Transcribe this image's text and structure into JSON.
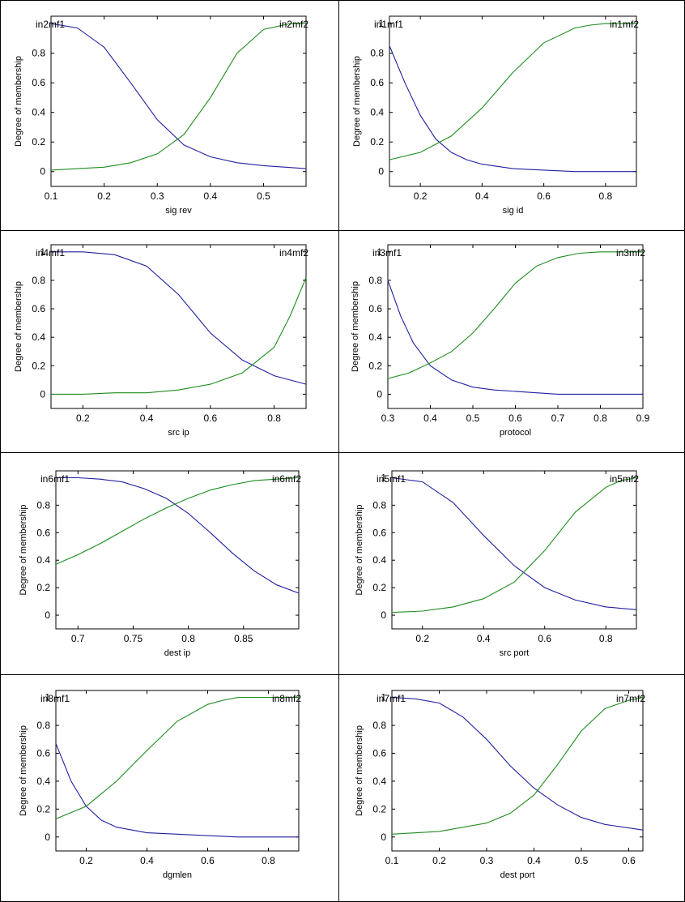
{
  "colors": {
    "mf1": "#1f1fa0",
    "mf2": "#1e8c1e",
    "border": "#000000"
  },
  "chart_data": [
    {
      "type": "line",
      "xlabel": "sig rev",
      "ylabel": "Degree of membership",
      "xlim": [
        0.1,
        0.58
      ],
      "ylim": [
        -0.1,
        1.05
      ],
      "xticks": [
        "0.1",
        "0.2",
        "0.3",
        "0.4",
        "0.5"
      ],
      "xtick_values": [
        0.1,
        0.2,
        0.3,
        0.4,
        0.5
      ],
      "yticks": [
        "0",
        "0.2",
        "0.4",
        "0.6",
        "0.8"
      ],
      "ytick_values": [
        0,
        0.2,
        0.4,
        0.6,
        0.8
      ],
      "series": [
        {
          "name": "in2mf1",
          "x": [
            0.1,
            0.15,
            0.2,
            0.25,
            0.3,
            0.35,
            0.4,
            0.45,
            0.5,
            0.58
          ],
          "y": [
            1.0,
            0.97,
            0.84,
            0.6,
            0.35,
            0.18,
            0.1,
            0.06,
            0.04,
            0.02
          ]
        },
        {
          "name": "in2mf2",
          "x": [
            0.1,
            0.15,
            0.2,
            0.25,
            0.3,
            0.35,
            0.4,
            0.45,
            0.5,
            0.55,
            0.58
          ],
          "y": [
            0.01,
            0.02,
            0.03,
            0.06,
            0.12,
            0.25,
            0.5,
            0.8,
            0.96,
            1.0,
            1.0
          ]
        }
      ]
    },
    {
      "type": "line",
      "xlabel": "sig id",
      "ylabel": "Degree of membership",
      "xlim": [
        0.1,
        0.9
      ],
      "ylim": [
        -0.1,
        1.05
      ],
      "xticks": [
        "0.2",
        "0.4",
        "0.6",
        "0.8"
      ],
      "xtick_values": [
        0.2,
        0.4,
        0.6,
        0.8
      ],
      "yticks": [
        "0",
        "0.2",
        "0.4",
        "0.6",
        "0.8",
        "1"
      ],
      "ytick_values": [
        0,
        0.2,
        0.4,
        0.6,
        0.8,
        1
      ],
      "series": [
        {
          "name": "in1mf1",
          "x": [
            0.1,
            0.15,
            0.2,
            0.25,
            0.3,
            0.35,
            0.4,
            0.5,
            0.6,
            0.7,
            0.8,
            0.9
          ],
          "y": [
            0.85,
            0.6,
            0.38,
            0.22,
            0.13,
            0.08,
            0.05,
            0.02,
            0.01,
            0.0,
            0.0,
            0.0
          ]
        },
        {
          "name": "in1mf2",
          "x": [
            0.1,
            0.2,
            0.3,
            0.4,
            0.5,
            0.6,
            0.7,
            0.75,
            0.8,
            0.9
          ],
          "y": [
            0.08,
            0.13,
            0.24,
            0.43,
            0.67,
            0.87,
            0.97,
            0.99,
            1.0,
            1.0
          ]
        }
      ]
    },
    {
      "type": "line",
      "xlabel": "src ip",
      "ylabel": "Degree of membership",
      "xlim": [
        0.1,
        0.9
      ],
      "ylim": [
        -0.1,
        1.05
      ],
      "xticks": [
        "0.2",
        "0.4",
        "0.6",
        "0.8"
      ],
      "xtick_values": [
        0.2,
        0.4,
        0.6,
        0.8
      ],
      "yticks": [
        "0",
        "0.2",
        "0.4",
        "0.6",
        "0.8",
        "1"
      ],
      "ytick_values": [
        0,
        0.2,
        0.4,
        0.6,
        0.8,
        1
      ],
      "series": [
        {
          "name": "in4mf1",
          "x": [
            0.1,
            0.2,
            0.3,
            0.4,
            0.5,
            0.6,
            0.7,
            0.8,
            0.9
          ],
          "y": [
            1.0,
            1.0,
            0.98,
            0.9,
            0.7,
            0.43,
            0.24,
            0.13,
            0.07
          ]
        },
        {
          "name": "in4mf2",
          "x": [
            0.1,
            0.2,
            0.3,
            0.4,
            0.5,
            0.6,
            0.7,
            0.8,
            0.85,
            0.9
          ],
          "y": [
            0.0,
            0.0,
            0.01,
            0.01,
            0.03,
            0.07,
            0.15,
            0.33,
            0.55,
            0.82
          ]
        }
      ]
    },
    {
      "type": "line",
      "xlabel": "protocol",
      "ylabel": "Degree of membership",
      "xlim": [
        0.3,
        0.9
      ],
      "ylim": [
        -0.1,
        1.05
      ],
      "xticks": [
        "0.3",
        "0.4",
        "0.5",
        "0.6",
        "0.7",
        "0.8",
        "0.9"
      ],
      "xtick_values": [
        0.3,
        0.4,
        0.5,
        0.6,
        0.7,
        0.8,
        0.9
      ],
      "yticks": [
        "0",
        "0.2",
        "0.4",
        "0.6",
        "0.8",
        "1"
      ],
      "ytick_values": [
        0,
        0.2,
        0.4,
        0.6,
        0.8,
        1
      ],
      "series": [
        {
          "name": "in3mf1",
          "x": [
            0.3,
            0.33,
            0.36,
            0.4,
            0.45,
            0.5,
            0.55,
            0.6,
            0.7,
            0.8,
            0.9
          ],
          "y": [
            0.8,
            0.55,
            0.36,
            0.2,
            0.1,
            0.05,
            0.03,
            0.02,
            0.0,
            0.0,
            0.0
          ]
        },
        {
          "name": "in3mf2",
          "x": [
            0.3,
            0.35,
            0.4,
            0.45,
            0.5,
            0.55,
            0.6,
            0.65,
            0.7,
            0.75,
            0.8,
            0.9
          ],
          "y": [
            0.11,
            0.15,
            0.22,
            0.3,
            0.43,
            0.6,
            0.78,
            0.9,
            0.96,
            0.99,
            1.0,
            1.0
          ]
        }
      ]
    },
    {
      "type": "line",
      "xlabel": "dest ip",
      "ylabel": "Degree of membership",
      "xlim": [
        0.68,
        0.9
      ],
      "ylim": [
        -0.1,
        1.05
      ],
      "xticks": [
        "0.7",
        "0.75",
        "0.8",
        "0.85"
      ],
      "xtick_values": [
        0.7,
        0.75,
        0.8,
        0.85
      ],
      "yticks": [
        "0",
        "0.2",
        "0.4",
        "0.6",
        "0.8"
      ],
      "ytick_values": [
        0,
        0.2,
        0.4,
        0.6,
        0.8
      ],
      "series": [
        {
          "name": "in6mf1",
          "x": [
            0.68,
            0.7,
            0.72,
            0.74,
            0.76,
            0.78,
            0.8,
            0.82,
            0.84,
            0.86,
            0.88,
            0.9
          ],
          "y": [
            1.0,
            1.0,
            0.99,
            0.97,
            0.92,
            0.85,
            0.74,
            0.6,
            0.45,
            0.32,
            0.22,
            0.16
          ]
        },
        {
          "name": "in6mf2",
          "x": [
            0.68,
            0.7,
            0.72,
            0.74,
            0.76,
            0.78,
            0.8,
            0.82,
            0.84,
            0.86,
            0.88,
            0.9
          ],
          "y": [
            0.37,
            0.44,
            0.52,
            0.61,
            0.7,
            0.78,
            0.85,
            0.91,
            0.95,
            0.98,
            0.99,
            1.0
          ]
        }
      ]
    },
    {
      "type": "line",
      "xlabel": "src port",
      "ylabel": "Degree of membership",
      "xlim": [
        0.1,
        0.9
      ],
      "ylim": [
        -0.1,
        1.05
      ],
      "xticks": [
        "0.2",
        "0.4",
        "0.6",
        "0.8"
      ],
      "xtick_values": [
        0.2,
        0.4,
        0.6,
        0.8
      ],
      "yticks": [
        "0",
        "0.2",
        "0.4",
        "0.6",
        "0.8",
        "1"
      ],
      "ytick_values": [
        0,
        0.2,
        0.4,
        0.6,
        0.8,
        1
      ],
      "series": [
        {
          "name": "in5mf1",
          "x": [
            0.1,
            0.2,
            0.3,
            0.4,
            0.5,
            0.6,
            0.7,
            0.8,
            0.9
          ],
          "y": [
            1.0,
            0.97,
            0.82,
            0.58,
            0.36,
            0.2,
            0.11,
            0.06,
            0.04
          ]
        },
        {
          "name": "in5mf2",
          "x": [
            0.1,
            0.2,
            0.3,
            0.4,
            0.5,
            0.6,
            0.7,
            0.8,
            0.85,
            0.9
          ],
          "y": [
            0.02,
            0.03,
            0.06,
            0.12,
            0.24,
            0.47,
            0.75,
            0.93,
            0.98,
            1.0
          ]
        }
      ]
    },
    {
      "type": "line",
      "xlabel": "dgmlen",
      "ylabel": "Degree of membership",
      "xlim": [
        0.1,
        0.9
      ],
      "ylim": [
        -0.1,
        1.05
      ],
      "xticks": [
        "0.2",
        "0.4",
        "0.6",
        "0.8"
      ],
      "xtick_values": [
        0.2,
        0.4,
        0.6,
        0.8
      ],
      "yticks": [
        "0",
        "0.2",
        "0.4",
        "0.6",
        "0.8",
        "1"
      ],
      "ytick_values": [
        0,
        0.2,
        0.4,
        0.6,
        0.8,
        1
      ],
      "series": [
        {
          "name": "in8mf1",
          "x": [
            0.1,
            0.15,
            0.2,
            0.25,
            0.3,
            0.4,
            0.5,
            0.6,
            0.7,
            0.9
          ],
          "y": [
            0.67,
            0.4,
            0.22,
            0.12,
            0.07,
            0.03,
            0.02,
            0.01,
            0.0,
            0.0
          ]
        },
        {
          "name": "in8mf2",
          "x": [
            0.1,
            0.2,
            0.3,
            0.4,
            0.5,
            0.6,
            0.65,
            0.7,
            0.8,
            0.9
          ],
          "y": [
            0.13,
            0.22,
            0.4,
            0.62,
            0.83,
            0.95,
            0.98,
            1.0,
            1.0,
            1.0
          ]
        }
      ]
    },
    {
      "type": "line",
      "xlabel": "dest port",
      "ylabel": "Degree of membership",
      "xlim": [
        0.1,
        0.63
      ],
      "ylim": [
        -0.1,
        1.05
      ],
      "xticks": [
        "0.1",
        "0.2",
        "0.3",
        "0.4",
        "0.5",
        "0.6"
      ],
      "xtick_values": [
        0.1,
        0.2,
        0.3,
        0.4,
        0.5,
        0.6
      ],
      "yticks": [
        "0",
        "0.2",
        "0.4",
        "0.6",
        "0.8",
        "1"
      ],
      "ytick_values": [
        0,
        0.2,
        0.4,
        0.6,
        0.8,
        1
      ],
      "series": [
        {
          "name": "in7mf1",
          "x": [
            0.1,
            0.15,
            0.2,
            0.25,
            0.3,
            0.35,
            0.4,
            0.45,
            0.5,
            0.55,
            0.63
          ],
          "y": [
            1.0,
            0.99,
            0.96,
            0.86,
            0.7,
            0.51,
            0.35,
            0.23,
            0.14,
            0.09,
            0.05
          ]
        },
        {
          "name": "in7mf2",
          "x": [
            0.1,
            0.2,
            0.3,
            0.35,
            0.4,
            0.45,
            0.5,
            0.55,
            0.6,
            0.63
          ],
          "y": [
            0.02,
            0.04,
            0.1,
            0.17,
            0.3,
            0.52,
            0.76,
            0.92,
            0.98,
            1.0
          ]
        }
      ]
    }
  ]
}
